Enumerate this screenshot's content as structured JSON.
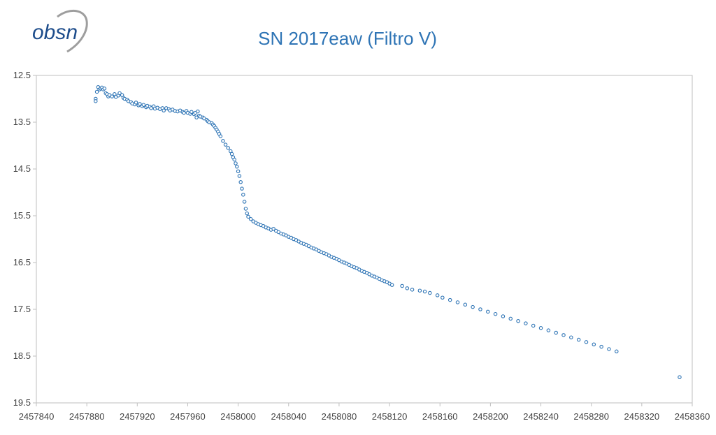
{
  "logo": {
    "text": "obsn"
  },
  "chart_data": {
    "type": "scatter",
    "title": "SN 2017eaw (Filtro V)",
    "xlabel": "",
    "ylabel": "",
    "xlim": [
      2457840,
      2458360
    ],
    "ylim": [
      19.5,
      12.5
    ],
    "y_inverted": true,
    "grid": false,
    "legend": "none",
    "xticks": [
      "2457840",
      "2457880",
      "2457920",
      "2457960",
      "2458000",
      "2458040",
      "2458080",
      "2458120",
      "2458160",
      "2458200",
      "2458240",
      "2458280",
      "2458320",
      "2458360"
    ],
    "yticks": [
      "12.5",
      "13.5",
      "14.5",
      "15.5",
      "16.5",
      "17.5",
      "18.5",
      "19.5"
    ],
    "marker_color": "#2e74b5",
    "series": [
      {
        "points": [
          [
            2457887,
            13.0
          ],
          [
            2457887,
            13.05
          ],
          [
            2457888,
            12.85
          ],
          [
            2457889,
            12.75
          ],
          [
            2457890,
            12.8
          ],
          [
            2457891,
            12.78
          ],
          [
            2457892,
            12.76
          ],
          [
            2457893,
            12.8
          ],
          [
            2457894,
            12.78
          ],
          [
            2457895,
            12.88
          ],
          [
            2457896,
            12.9
          ],
          [
            2457897,
            12.95
          ],
          [
            2457898,
            12.92
          ],
          [
            2457900,
            12.95
          ],
          [
            2457902,
            12.9
          ],
          [
            2457903,
            12.96
          ],
          [
            2457905,
            12.93
          ],
          [
            2457906,
            12.88
          ],
          [
            2457908,
            12.92
          ],
          [
            2457909,
            12.98
          ],
          [
            2457910,
            13.0
          ],
          [
            2457912,
            13.02
          ],
          [
            2457913,
            13.05
          ],
          [
            2457915,
            13.07
          ],
          [
            2457916,
            13.1
          ],
          [
            2457918,
            13.12
          ],
          [
            2457919,
            13.08
          ],
          [
            2457921,
            13.14
          ],
          [
            2457922,
            13.11
          ],
          [
            2457924,
            13.16
          ],
          [
            2457925,
            13.13
          ],
          [
            2457927,
            13.18
          ],
          [
            2457928,
            13.15
          ],
          [
            2457930,
            13.17
          ],
          [
            2457931,
            13.2
          ],
          [
            2457933,
            13.16
          ],
          [
            2457934,
            13.21
          ],
          [
            2457936,
            13.19
          ],
          [
            2457938,
            13.22
          ],
          [
            2457940,
            13.2
          ],
          [
            2457941,
            13.25
          ],
          [
            2457943,
            13.2
          ],
          [
            2457945,
            13.22
          ],
          [
            2457946,
            13.25
          ],
          [
            2457948,
            13.23
          ],
          [
            2457950,
            13.26
          ],
          [
            2457952,
            13.27
          ],
          [
            2457954,
            13.25
          ],
          [
            2457956,
            13.28
          ],
          [
            2457957,
            13.3
          ],
          [
            2457959,
            13.26
          ],
          [
            2457960,
            13.3
          ],
          [
            2457962,
            13.32
          ],
          [
            2457963,
            13.28
          ],
          [
            2457965,
            13.33
          ],
          [
            2457966,
            13.3
          ],
          [
            2457967,
            13.4
          ],
          [
            2457968,
            13.27
          ],
          [
            2457969,
            13.36
          ],
          [
            2457970,
            13.38
          ],
          [
            2457972,
            13.4
          ],
          [
            2457973,
            13.42
          ],
          [
            2457975,
            13.45
          ],
          [
            2457976,
            13.48
          ],
          [
            2457977,
            13.5
          ],
          [
            2457979,
            13.52
          ],
          [
            2457980,
            13.55
          ],
          [
            2457981,
            13.58
          ],
          [
            2457982,
            13.62
          ],
          [
            2457983,
            13.66
          ],
          [
            2457984,
            13.7
          ],
          [
            2457985,
            13.75
          ],
          [
            2457986,
            13.8
          ],
          [
            2457988,
            13.9
          ],
          [
            2457990,
            13.98
          ],
          [
            2457992,
            14.05
          ],
          [
            2457994,
            14.12
          ],
          [
            2457995,
            14.18
          ],
          [
            2457996,
            14.25
          ],
          [
            2457997,
            14.3
          ],
          [
            2457998,
            14.38
          ],
          [
            2457999,
            14.45
          ],
          [
            2458000,
            14.55
          ],
          [
            2458001,
            14.65
          ],
          [
            2458002,
            14.78
          ],
          [
            2458003,
            14.92
          ],
          [
            2458004,
            15.05
          ],
          [
            2458005,
            15.2
          ],
          [
            2458006,
            15.35
          ],
          [
            2458007,
            15.45
          ],
          [
            2458008,
            15.52
          ],
          [
            2458010,
            15.57
          ],
          [
            2458012,
            15.62
          ],
          [
            2458014,
            15.65
          ],
          [
            2458016,
            15.68
          ],
          [
            2458018,
            15.7
          ],
          [
            2458020,
            15.72
          ],
          [
            2458022,
            15.75
          ],
          [
            2458024,
            15.77
          ],
          [
            2458026,
            15.8
          ],
          [
            2458028,
            15.78
          ],
          [
            2458030,
            15.82
          ],
          [
            2458032,
            15.85
          ],
          [
            2458034,
            15.88
          ],
          [
            2458036,
            15.9
          ],
          [
            2458038,
            15.92
          ],
          [
            2458040,
            15.95
          ],
          [
            2458042,
            15.97
          ],
          [
            2458044,
            16.0
          ],
          [
            2458046,
            16.02
          ],
          [
            2458048,
            16.05
          ],
          [
            2458050,
            16.08
          ],
          [
            2458052,
            16.1
          ],
          [
            2458054,
            16.12
          ],
          [
            2458056,
            16.15
          ],
          [
            2458058,
            16.18
          ],
          [
            2458060,
            16.2
          ],
          [
            2458062,
            16.22
          ],
          [
            2458064,
            16.25
          ],
          [
            2458066,
            16.28
          ],
          [
            2458068,
            16.3
          ],
          [
            2458070,
            16.32
          ],
          [
            2458072,
            16.35
          ],
          [
            2458074,
            16.38
          ],
          [
            2458076,
            16.4
          ],
          [
            2458078,
            16.42
          ],
          [
            2458080,
            16.45
          ],
          [
            2458082,
            16.48
          ],
          [
            2458084,
            16.5
          ],
          [
            2458086,
            16.52
          ],
          [
            2458088,
            16.55
          ],
          [
            2458090,
            16.58
          ],
          [
            2458092,
            16.6
          ],
          [
            2458094,
            16.62
          ],
          [
            2458096,
            16.65
          ],
          [
            2458098,
            16.68
          ],
          [
            2458100,
            16.7
          ],
          [
            2458102,
            16.72
          ],
          [
            2458104,
            16.75
          ],
          [
            2458106,
            16.78
          ],
          [
            2458108,
            16.8
          ],
          [
            2458110,
            16.82
          ],
          [
            2458112,
            16.85
          ],
          [
            2458114,
            16.88
          ],
          [
            2458116,
            16.9
          ],
          [
            2458118,
            16.92
          ],
          [
            2458120,
            16.95
          ],
          [
            2458122,
            16.98
          ],
          [
            2458130,
            17.0
          ],
          [
            2458134,
            17.05
          ],
          [
            2458138,
            17.08
          ],
          [
            2458144,
            17.1
          ],
          [
            2458148,
            17.12
          ],
          [
            2458152,
            17.15
          ],
          [
            2458158,
            17.2
          ],
          [
            2458162,
            17.25
          ],
          [
            2458168,
            17.3
          ],
          [
            2458174,
            17.35
          ],
          [
            2458180,
            17.4
          ],
          [
            2458186,
            17.45
          ],
          [
            2458192,
            17.5
          ],
          [
            2458198,
            17.55
          ],
          [
            2458204,
            17.6
          ],
          [
            2458210,
            17.65
          ],
          [
            2458216,
            17.7
          ],
          [
            2458222,
            17.75
          ],
          [
            2458228,
            17.8
          ],
          [
            2458234,
            17.85
          ],
          [
            2458240,
            17.9
          ],
          [
            2458246,
            17.95
          ],
          [
            2458252,
            18.0
          ],
          [
            2458258,
            18.05
          ],
          [
            2458264,
            18.1
          ],
          [
            2458270,
            18.15
          ],
          [
            2458276,
            18.2
          ],
          [
            2458282,
            18.25
          ],
          [
            2458288,
            18.3
          ],
          [
            2458294,
            18.35
          ],
          [
            2458300,
            18.4
          ],
          [
            2458350,
            18.95
          ]
        ]
      }
    ]
  }
}
